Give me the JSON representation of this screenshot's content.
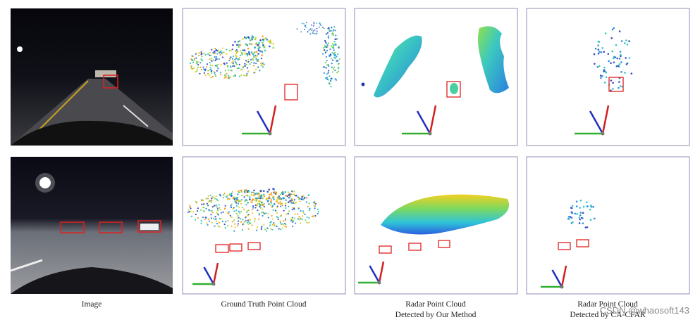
{
  "figure": {
    "captions": [
      [
        "Image"
      ],
      [
        "Ground Truth Point Cloud"
      ],
      [
        "Radar Point Cloud",
        "Detected by Our Method"
      ],
      [
        "Radar Point Cloud",
        "Detected by CA-CFAR"
      ]
    ],
    "watermark": "CSDN @whaosoft143"
  }
}
